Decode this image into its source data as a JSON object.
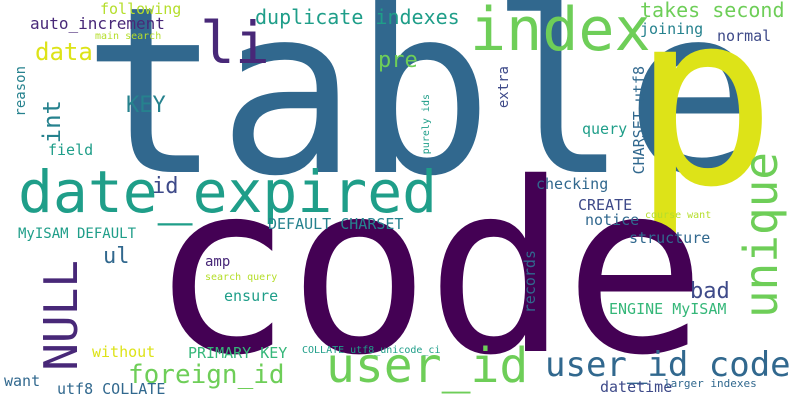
{
  "words": {
    "table": "table",
    "p": "p",
    "code": "code",
    "index": "index",
    "date_expired": "date_expired",
    "user_id": "user_id",
    "unique": "unique",
    "null": "NULL",
    "user_id_code": "user_id code",
    "li": "li",
    "foreign_id": "foreign_id",
    "duplicate_indexes": "duplicate indexes",
    "takes_second": "takes second",
    "auto_increment": "auto_increment",
    "following": "following",
    "main_search": "main search",
    "data": "data",
    "int": "int",
    "key": "KEY",
    "pre": "pre",
    "joining": "joining",
    "normal": "normal",
    "reason": "reason",
    "field": "field",
    "purely_ids": "purely ids",
    "extra": "extra",
    "charset_utf8": "CHARSET utf8",
    "query": "query",
    "id": "id",
    "checking": "checking",
    "create": "CREATE",
    "notice": "notice",
    "course_want": "course want",
    "myisam_default": "MyISAM DEFAULT",
    "default_charset": "DEFAULT CHARSET",
    "structure": "structure",
    "ul": "ul",
    "amp": "amp",
    "search_query": "search query",
    "ensure": "ensure",
    "bad": "bad",
    "records": "records",
    "engine_myisam": "ENGINE MyISAM",
    "without": "without",
    "primary_key": "PRIMARY KEY",
    "collate_utf8_unicode_ci": "COLLATE utf8_unicode_ci",
    "want": "want",
    "utf8_collate": "utf8 COLLATE",
    "datetime": "datetime",
    "larger_indexes": "larger indexes"
  }
}
